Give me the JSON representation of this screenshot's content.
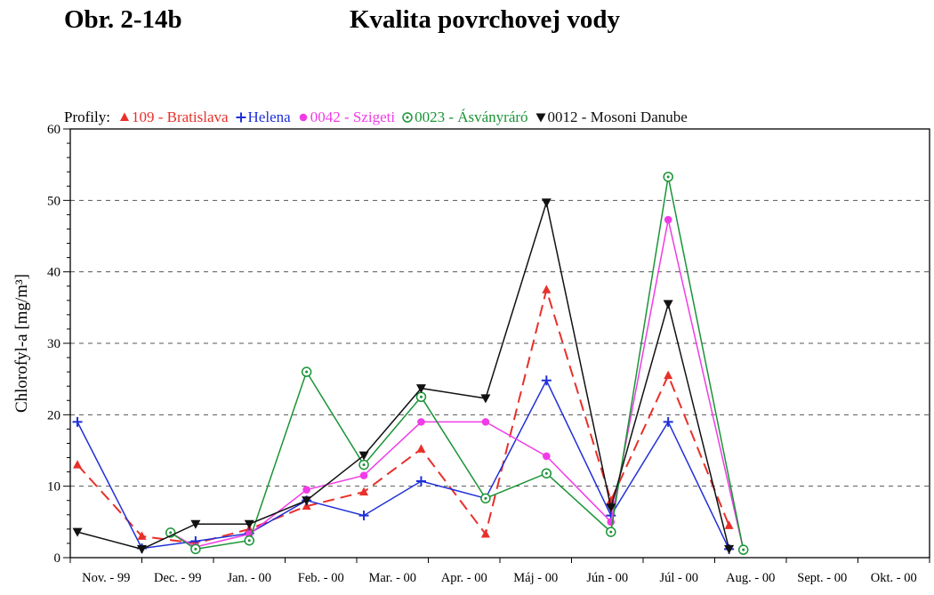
{
  "figure_label": "Obr. 2-14b",
  "title": "Kvalita povrchovej vody",
  "legend_title": "Profily:",
  "chart_data": {
    "type": "line",
    "title": "Kvalita povrchovej vody",
    "xlabel": "",
    "ylabel": "Chlorofyl-a [mg/m³]",
    "ylim": [
      0,
      60
    ],
    "yticks": [
      0,
      10,
      20,
      30,
      40,
      50,
      60
    ],
    "grid": "horizontal dashed",
    "legend_placement": "top",
    "categories": [
      "Nov. - 99",
      "Dec. - 99",
      "Jan. - 00",
      "Feb. - 00",
      "Mar. - 00",
      "Apr. - 00",
      "Máj - 00",
      "Jún - 00",
      "Júl - 00",
      "Aug. - 00",
      "Sept. - 00",
      "Okt. - 00"
    ],
    "series": [
      {
        "name": "109 - Bratislava",
        "color": "#e8302a",
        "dash": true,
        "marker": "triangle",
        "points": [
          [
            0.1,
            13
          ],
          [
            1.0,
            3
          ],
          [
            1.75,
            2
          ],
          [
            2.5,
            4
          ],
          [
            3.3,
            7.2
          ],
          [
            4.1,
            9.2
          ],
          [
            4.9,
            15.2
          ],
          [
            5.8,
            3.3
          ],
          [
            6.65,
            37.5
          ],
          [
            7.55,
            8
          ],
          [
            8.35,
            25.5
          ],
          [
            9.2,
            4.5
          ]
        ]
      },
      {
        "name": "Helena",
        "color": "#1f2fd8",
        "dash": false,
        "marker": "plus",
        "points": [
          [
            0.1,
            19
          ],
          [
            1.0,
            1.3
          ],
          [
            1.75,
            2.3
          ],
          [
            2.5,
            3.4
          ],
          [
            3.3,
            8
          ],
          [
            4.1,
            5.9
          ],
          [
            4.9,
            10.7
          ],
          [
            5.8,
            8.3
          ],
          [
            6.65,
            24.8
          ],
          [
            7.55,
            5.9
          ],
          [
            8.35,
            19
          ],
          [
            9.2,
            1.2
          ]
        ]
      },
      {
        "name": "0042 - Szigeti",
        "color": "#f03ce6",
        "dash": false,
        "marker": "circle",
        "points": [
          [
            1.4,
            3.5
          ],
          [
            1.75,
            1.5
          ],
          [
            2.5,
            3.3
          ],
          [
            3.3,
            9.5
          ],
          [
            4.1,
            11.5
          ],
          [
            4.9,
            19
          ],
          [
            5.8,
            19
          ],
          [
            6.65,
            14.2
          ],
          [
            7.55,
            5
          ],
          [
            8.35,
            47.3
          ],
          [
            9.4,
            1.1
          ]
        ]
      },
      {
        "name": "0023 - Ásványráró",
        "color": "#1a9436",
        "dash": false,
        "marker": "ring",
        "points": [
          [
            1.4,
            3.5
          ],
          [
            1.75,
            1.2
          ],
          [
            2.5,
            2.4
          ],
          [
            3.3,
            26
          ],
          [
            4.1,
            13
          ],
          [
            4.9,
            22.5
          ],
          [
            5.8,
            8.3
          ],
          [
            6.65,
            11.8
          ],
          [
            7.55,
            3.6
          ],
          [
            8.35,
            53.3
          ],
          [
            9.4,
            1.1
          ]
        ]
      },
      {
        "name": "0012 - Mosoni Danube",
        "color": "#111111",
        "dash": false,
        "marker": "triangle-down",
        "points": [
          [
            0.1,
            3.6
          ],
          [
            1.0,
            1.2
          ],
          [
            1.75,
            4.7
          ],
          [
            2.5,
            4.7
          ],
          [
            3.3,
            8
          ],
          [
            4.1,
            14.3
          ],
          [
            4.9,
            23.7
          ],
          [
            5.8,
            22.3
          ],
          [
            6.65,
            49.7
          ],
          [
            7.55,
            7
          ],
          [
            8.35,
            35.5
          ],
          [
            9.2,
            1.2
          ]
        ]
      }
    ]
  }
}
